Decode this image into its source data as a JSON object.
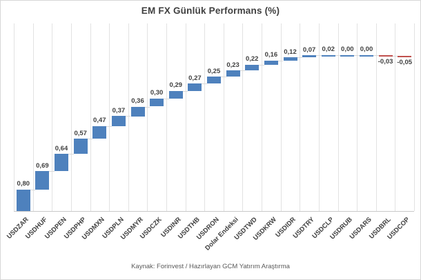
{
  "chart_data": {
    "type": "bar",
    "subtype": "waterfall",
    "title": "EM FX Günlük Performans (%)",
    "source_caption": "Kaynak: Forinvest / Hazırlayan GCM Yatırım Araştırma",
    "categories": [
      "USDZAR",
      "USDHUF",
      "USDPEN",
      "USDPHP",
      "USDMXN",
      "USDPLN",
      "USDMYR",
      "USDCZK",
      "USDINR",
      "USDTHB",
      "USDRON",
      "Dolar Endeksi",
      "USDTWD",
      "USDKRW",
      "USDIDR",
      "USDTRY",
      "USDCLP",
      "USDRUB",
      "USDARS",
      "USDBRL",
      "USDCOP"
    ],
    "values": [
      0.8,
      0.69,
      0.64,
      0.57,
      0.47,
      0.37,
      0.36,
      0.3,
      0.29,
      0.27,
      0.25,
      0.23,
      0.22,
      0.16,
      0.12,
      0.07,
      0.02,
      0.0,
      0.0,
      -0.03,
      -0.05
    ],
    "value_labels": [
      "0,80",
      "0,69",
      "0,64",
      "0,57",
      "0,47",
      "0,37",
      "0,36",
      "0,30",
      "0,29",
      "0,27",
      "0,25",
      "0,23",
      "0,22",
      "0,16",
      "0,12",
      "0,07",
      "0,02",
      "0,00",
      "0,00",
      "-0,03",
      "-0,05"
    ],
    "xlabel": "",
    "ylabel": "",
    "ylim": [
      0,
      7
    ],
    "grid": "vertical-only",
    "legend": "none",
    "colors": {
      "positive_bar": "#4e81bd",
      "negative_bar": "#c0504d",
      "gridline": "#e2e2e2",
      "axis_line": "#c8c8c8",
      "connector": "#d9d9d9",
      "data_label": "#3f3f3f",
      "title": "#404040",
      "source": "#595959"
    }
  }
}
